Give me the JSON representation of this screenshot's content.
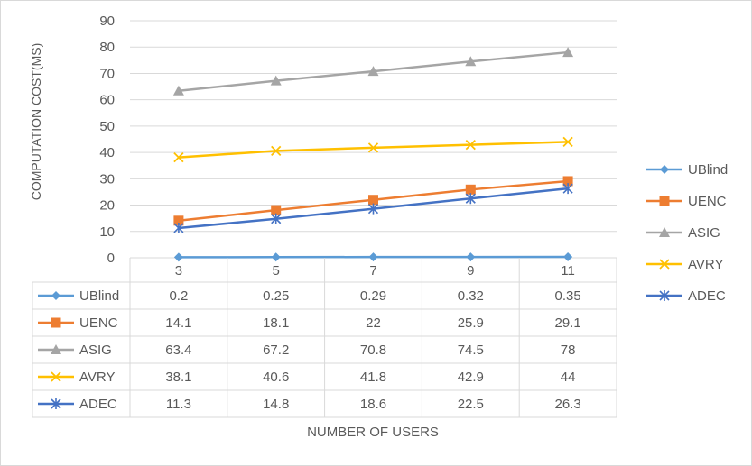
{
  "chart_data": {
    "type": "line",
    "title": "",
    "xlabel": "NUMBER OF USERS",
    "ylabel": "COMPUTATION COST(MS)",
    "categories": [
      "3",
      "5",
      "7",
      "9",
      "11"
    ],
    "ylim": [
      0,
      90
    ],
    "yticks": [
      0,
      10,
      20,
      30,
      40,
      50,
      60,
      70,
      80,
      90
    ],
    "grid": true,
    "legend_position": "right",
    "data_table": true,
    "series": [
      {
        "name": "UBlind",
        "values": [
          0.2,
          0.25,
          0.29,
          0.32,
          0.35
        ],
        "color": "#5b9bd5",
        "marker": "diamond"
      },
      {
        "name": "UENC",
        "values": [
          14.1,
          18.1,
          22,
          25.9,
          29.1
        ],
        "color": "#ed7d31",
        "marker": "square"
      },
      {
        "name": "ASIG",
        "values": [
          63.4,
          67.2,
          70.8,
          74.5,
          78
        ],
        "color": "#a5a5a5",
        "marker": "triangle"
      },
      {
        "name": "AVRY",
        "values": [
          38.1,
          40.6,
          41.8,
          42.9,
          44
        ],
        "color": "#ffc000",
        "marker": "x"
      },
      {
        "name": "ADEC",
        "values": [
          11.3,
          14.8,
          18.6,
          22.5,
          26.3
        ],
        "color": "#4472c4",
        "marker": "star"
      }
    ]
  }
}
